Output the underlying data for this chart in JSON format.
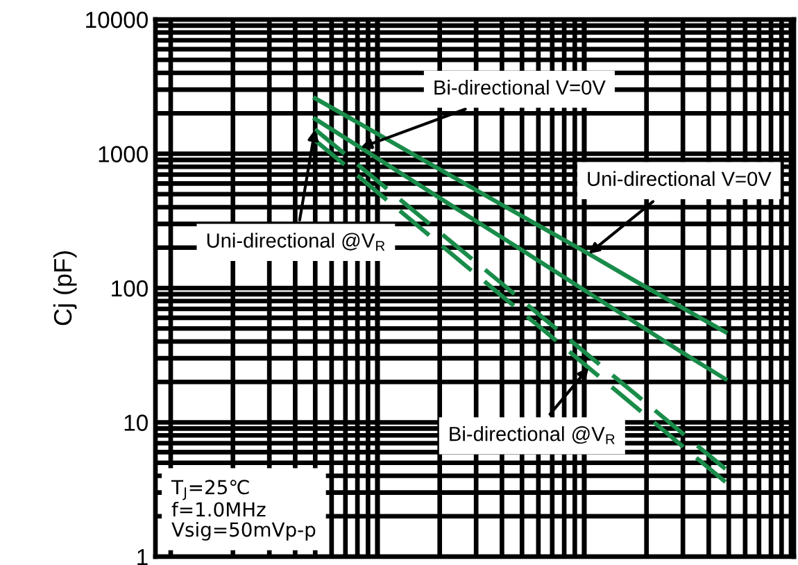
{
  "chart_data": {
    "type": "line",
    "ylabel": "Cj (pF)",
    "log": "y",
    "categories": [
      null,
      null,
      null,
      null,
      null,
      null,
      null,
      null,
      null,
      null,
      null,
      null,
      null,
      null
    ],
    "ylim": [
      1,
      10000
    ],
    "yticks": [
      1,
      10,
      100,
      1000,
      10000
    ],
    "tick_labels": "y",
    "grid": true,
    "legend": false,
    "marker": "none",
    "series": [
      {
        "name": "Uni-directional V=0V",
        "color": "#1a8c4a",
        "values": [
          null,
          null,
          null,
          2590,
          1660,
          1060,
          680,
          435,
          280,
          180,
          114,
          73,
          47,
          null
        ],
        "line_style": "solid"
      },
      {
        "name": "Bi-directional V=0V",
        "color": "#1a8c4a",
        "values": [
          null,
          null,
          null,
          1820,
          1110,
          675,
          410,
          250,
          152,
          92,
          56,
          34,
          21,
          null
        ],
        "line_style": "solid"
      },
      {
        "name": "Uni-directional @V$_{R}$",
        "color": "#1a8c4a",
        "values": [
          null,
          null,
          null,
          1520,
          796,
          418,
          219,
          115,
          60,
          31.5,
          16.5,
          8.6,
          4.5,
          null
        ],
        "line_style": "dashed"
      },
      {
        "name": "Bi-directional @V$_{R}$",
        "color": "#1a8c4a",
        "values": [
          null,
          null,
          null,
          1260,
          658,
          343,
          179,
          93,
          49,
          25.5,
          13.3,
          6.9,
          3.6,
          null
        ],
        "line_style": "dashed"
      }
    ],
    "annotations": [
      "T$_{J}$=25℃\nf=1.0MHz\nVsig=50mVp-p"
    ]
  }
}
